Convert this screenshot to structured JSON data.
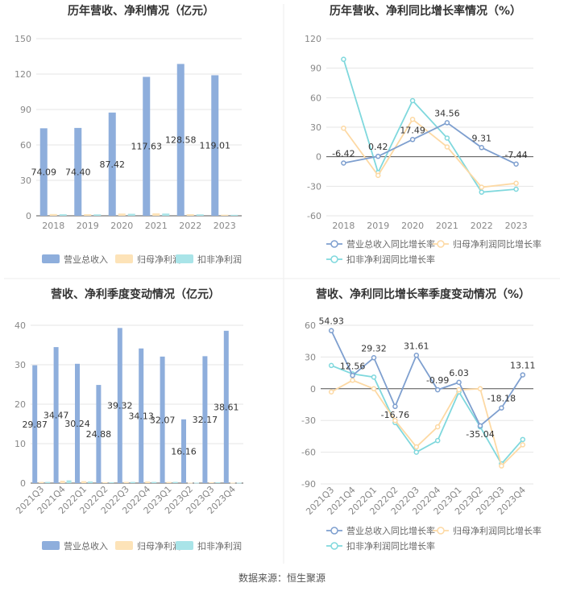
{
  "source": "数据来源：恒生聚源",
  "colors": {
    "revenue": "#8eaedc",
    "netprofit": "#fde3b8",
    "deducted": "#a9e4e8",
    "rev_line": "#7e9fcf",
    "np_line": "#fdd9a4",
    "de_line": "#7fd8dd",
    "grid": "#e6e6e6",
    "axis": "#555555",
    "divider": "#eeeeee"
  },
  "chart_data": [
    {
      "id": "c1",
      "type": "bar",
      "title": "历年营收、净利情况（亿元）",
      "categories": [
        "2018",
        "2019",
        "2020",
        "2021",
        "2022",
        "2023"
      ],
      "yticks": [
        "150",
        "120",
        "90",
        "60",
        "30",
        "0"
      ],
      "ylim": [
        0,
        150
      ],
      "series": [
        {
          "name": "营业总收入",
          "values": [
            74.09,
            74.4,
            87.42,
            117.63,
            128.58,
            119.01
          ],
          "labels": [
            "74.09",
            "74.40",
            "87.42",
            "117.63",
            "128.58",
            "119.01"
          ]
        },
        {
          "name": "归母净利润",
          "values": [
            1.5,
            1.4,
            1.9,
            2.1,
            1.4,
            0.9
          ]
        },
        {
          "name": "扣非净利润",
          "values": [
            1.3,
            1.2,
            1.7,
            1.9,
            1.2,
            0.8
          ]
        }
      ]
    },
    {
      "id": "c2",
      "type": "line",
      "title": "历年营收、净利同比增长率情况（%）",
      "categories": [
        "2018",
        "2019",
        "2020",
        "2021",
        "2022",
        "2023"
      ],
      "yticks": [
        "120",
        "90",
        "60",
        "30",
        "0",
        "-30",
        "-60"
      ],
      "ylim": [
        -60,
        120
      ],
      "series": [
        {
          "name": "营业总收入同比增长率",
          "values": [
            -6.42,
            0.42,
            17.49,
            34.56,
            9.31,
            -7.44
          ],
          "labels": [
            "-6.42",
            "0.42",
            "17.49",
            "34.56",
            "9.31",
            "-7.44"
          ]
        },
        {
          "name": "归母净利润同比增长率",
          "values": [
            29,
            -19,
            38,
            10,
            -31,
            -27
          ]
        },
        {
          "name": "扣非净利润同比增长率",
          "values": [
            99,
            -16,
            57,
            19,
            -36,
            -33
          ]
        }
      ]
    },
    {
      "id": "c3",
      "type": "bar",
      "title": "营收、净利季度变动情况（亿元）",
      "categories": [
        "2021Q3",
        "2021Q4",
        "2022Q1",
        "2022Q2",
        "2022Q3",
        "2022Q4",
        "2023Q1",
        "2023Q2",
        "2023Q3",
        "2023Q4"
      ],
      "yticks": [
        "40",
        "30",
        "20",
        "10",
        "0"
      ],
      "ylim": [
        0,
        40
      ],
      "series": [
        {
          "name": "营业总收入",
          "values": [
            29.87,
            34.47,
            30.24,
            24.88,
            39.32,
            34.13,
            32.07,
            16.16,
            32.17,
            38.61
          ],
          "labels": [
            "29.87",
            "34.47",
            "30.24",
            "24.88",
            "39.32",
            "34.13",
            "32.07",
            "16.16",
            "32.17",
            "38.61"
          ]
        },
        {
          "name": "归母净利润",
          "values": [
            0.3,
            0.6,
            0.5,
            0.2,
            0.3,
            0.4,
            0.3,
            0.1,
            0.2,
            0.1
          ]
        },
        {
          "name": "扣非净利润",
          "values": [
            0.3,
            0.7,
            0.4,
            0.2,
            0.3,
            0.3,
            0.3,
            0.1,
            0.2,
            0.1
          ]
        }
      ]
    },
    {
      "id": "c4",
      "type": "line",
      "title": "营收、净利同比增长率季度变动情况（%）",
      "categories": [
        "2021Q3",
        "2021Q4",
        "2022Q1",
        "2022Q2",
        "2022Q3",
        "2022Q4",
        "2023Q1",
        "2023Q2",
        "2023Q3",
        "2023Q4"
      ],
      "yticks": [
        "60",
        "30",
        "0",
        "-30",
        "-60",
        "-90"
      ],
      "ylim": [
        -90,
        60
      ],
      "series": [
        {
          "name": "营业总收入同比增长率",
          "values": [
            54.93,
            12.56,
            29.32,
            -16.76,
            31.61,
            -0.99,
            6.03,
            -35.04,
            -18.18,
            13.11
          ],
          "labels": [
            "54.93",
            "12.56",
            "29.32",
            "-16.76",
            "31.61",
            "-0.99",
            "6.03",
            "-35.04",
            "-18.18",
            "13.11"
          ]
        },
        {
          "name": "归母净利润同比增长率",
          "values": [
            -3,
            8,
            0,
            -30,
            -55,
            -36,
            -1,
            0,
            -73,
            -53
          ]
        },
        {
          "name": "扣非净利润同比增长率",
          "values": [
            22,
            14,
            11,
            -32,
            -60,
            -49,
            -3,
            -36,
            -71,
            -48
          ]
        }
      ]
    }
  ]
}
